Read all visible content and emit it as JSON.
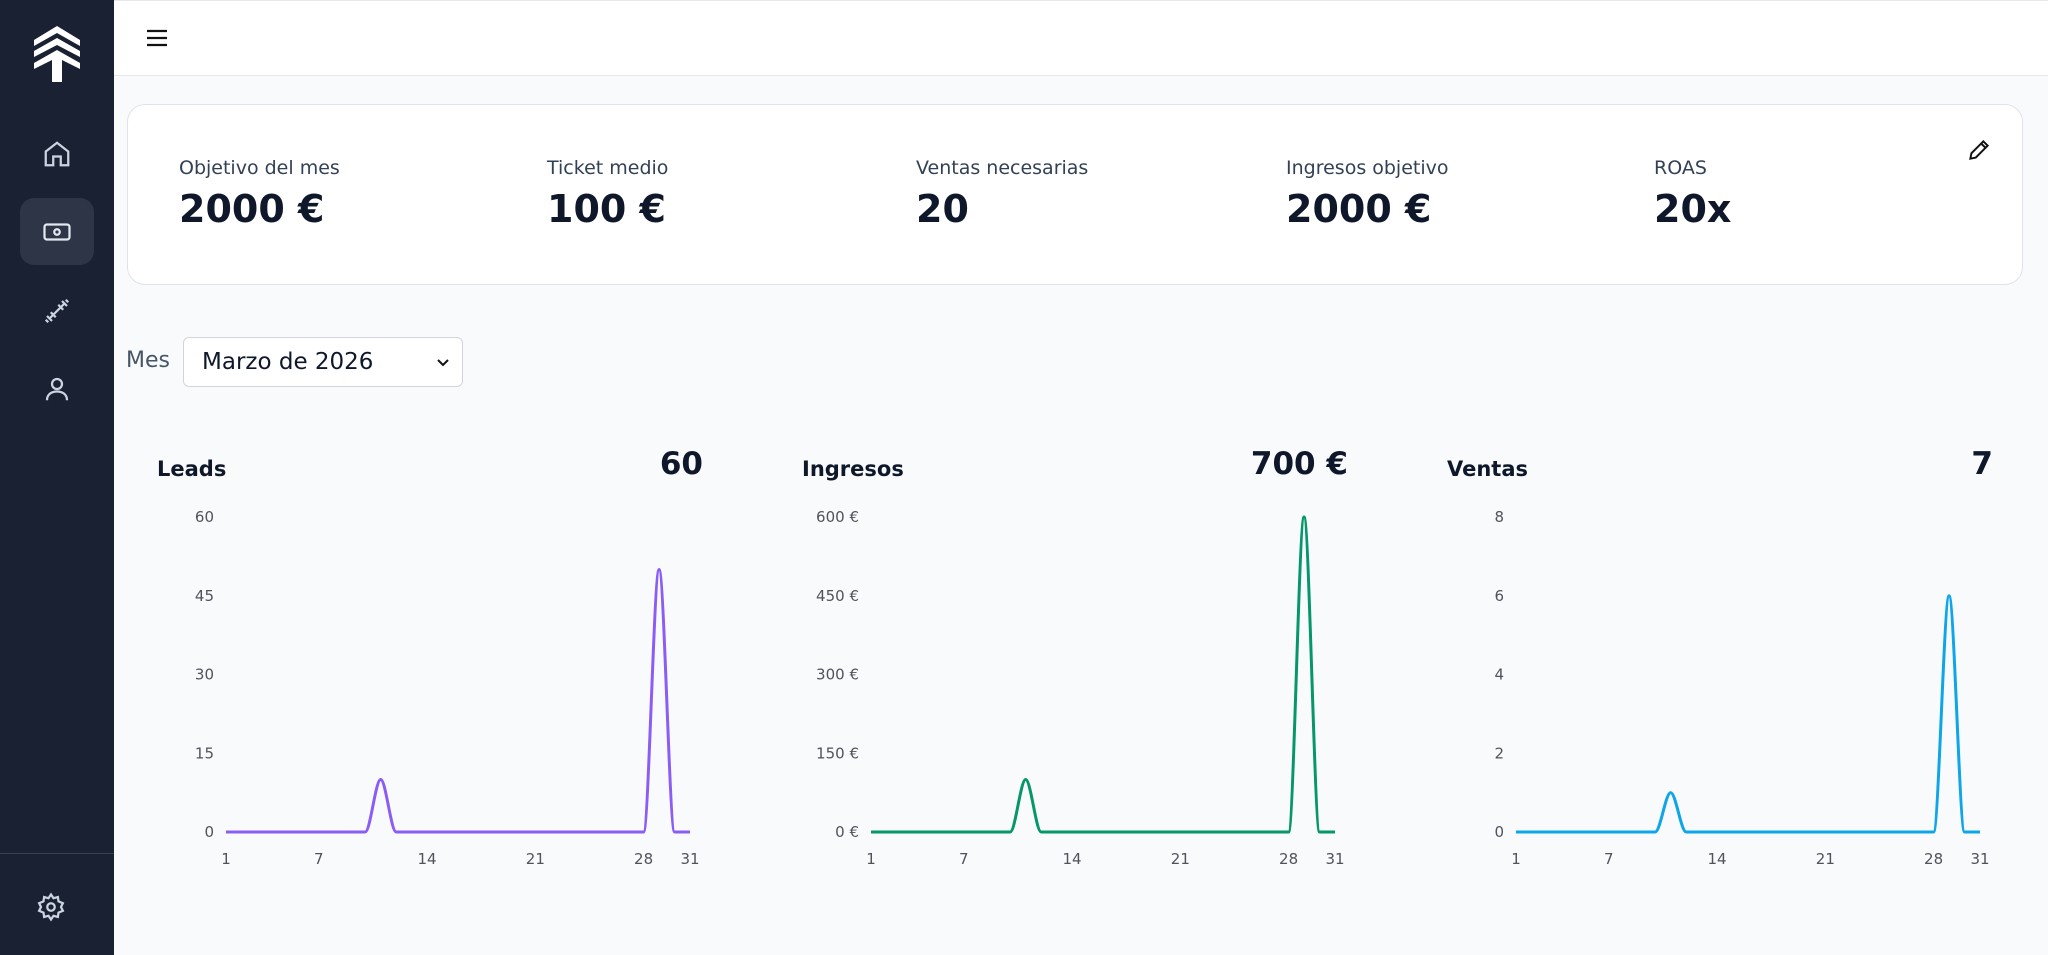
{
  "stats": [
    {
      "label": "Objetivo del mes",
      "value": "2000 €"
    },
    {
      "label": "Ticket medio",
      "value": "100 €"
    },
    {
      "label": "Ventas necesarias",
      "value": "20"
    },
    {
      "label": "Ingresos objetivo",
      "value": "2000 €"
    },
    {
      "label": "ROAS",
      "value": "20x"
    }
  ],
  "filter": {
    "label": "Mes",
    "value": "Marzo de 2026"
  },
  "chart_data": [
    {
      "type": "line",
      "title": "Leads",
      "total": "60",
      "x": [
        1,
        2,
        3,
        4,
        5,
        6,
        7,
        8,
        9,
        10,
        11,
        12,
        13,
        14,
        15,
        16,
        17,
        18,
        19,
        20,
        21,
        22,
        23,
        24,
        25,
        26,
        27,
        28,
        29,
        30,
        31
      ],
      "xlim": [
        1,
        31
      ],
      "xticks": [
        1,
        7,
        14,
        21,
        28,
        31
      ],
      "ylim": [
        0,
        60
      ],
      "yticks": [
        0,
        15,
        30,
        45,
        60
      ],
      "series": [
        {
          "color": "#8b5cf6",
          "values": [
            0,
            0,
            0,
            0,
            0,
            0,
            0,
            0,
            0,
            0,
            10,
            0,
            0,
            0,
            0,
            0,
            0,
            0,
            0,
            0,
            0,
            0,
            0,
            0,
            0,
            0,
            0,
            0,
            50,
            0,
            0
          ]
        }
      ]
    },
    {
      "type": "line",
      "title": "Ingresos",
      "total": "700 €",
      "x": [
        1,
        2,
        3,
        4,
        5,
        6,
        7,
        8,
        9,
        10,
        11,
        12,
        13,
        14,
        15,
        16,
        17,
        18,
        19,
        20,
        21,
        22,
        23,
        24,
        25,
        26,
        27,
        28,
        29,
        30,
        31
      ],
      "xlim": [
        1,
        31
      ],
      "xticks": [
        1,
        7,
        14,
        21,
        28,
        31
      ],
      "ylim": [
        0,
        600
      ],
      "yticks": [
        {
          "value": 0,
          "label": "0 €"
        },
        {
          "value": 150,
          "label": "150 €"
        },
        {
          "value": 300,
          "label": "300 €"
        },
        {
          "value": 450,
          "label": "450 €"
        },
        {
          "value": 600,
          "label": "600 €"
        }
      ],
      "series": [
        {
          "color": "#059669",
          "values": [
            0,
            0,
            0,
            0,
            0,
            0,
            0,
            0,
            0,
            0,
            100,
            0,
            0,
            0,
            0,
            0,
            0,
            0,
            0,
            0,
            0,
            0,
            0,
            0,
            0,
            0,
            0,
            0,
            600,
            0,
            0
          ]
        }
      ]
    },
    {
      "type": "line",
      "title": "Ventas",
      "total": "7",
      "x": [
        1,
        2,
        3,
        4,
        5,
        6,
        7,
        8,
        9,
        10,
        11,
        12,
        13,
        14,
        15,
        16,
        17,
        18,
        19,
        20,
        21,
        22,
        23,
        24,
        25,
        26,
        27,
        28,
        29,
        30,
        31
      ],
      "xlim": [
        1,
        31
      ],
      "xticks": [
        1,
        7,
        14,
        21,
        28,
        31
      ],
      "ylim": [
        0,
        8
      ],
      "yticks": [
        0,
        2,
        4,
        6,
        8
      ],
      "series": [
        {
          "color": "#0ea5e9",
          "values": [
            0,
            0,
            0,
            0,
            0,
            0,
            0,
            0,
            0,
            0,
            1,
            0,
            0,
            0,
            0,
            0,
            0,
            0,
            0,
            0,
            0,
            0,
            0,
            0,
            0,
            0,
            0,
            0,
            6,
            0,
            0
          ]
        }
      ]
    }
  ]
}
